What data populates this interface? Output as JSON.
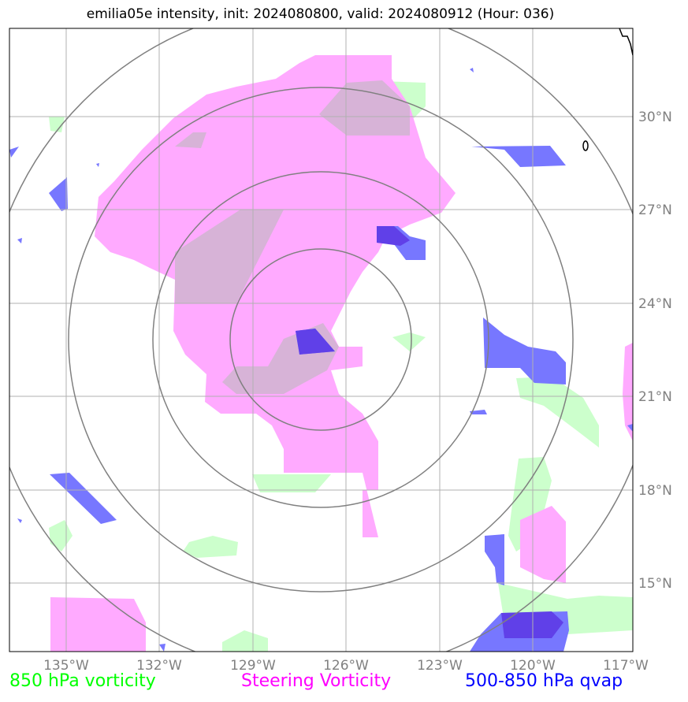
{
  "title": "emilia05e intensity, init: 2024080800, valid: 2024080912 (Hour: 036)",
  "lon_labels": [
    "135°W",
    "132°W",
    "129°W",
    "126°W",
    "123°W",
    "120°W",
    "117°W"
  ],
  "lat_labels": [
    "30°N",
    "27°N",
    "24°N",
    "21°N",
    "18°N",
    "15°N"
  ],
  "legend": [
    {
      "label": "850 hPa vorticity",
      "color": "#00ff00"
    },
    {
      "label": "Steering Vorticity",
      "color": "#ff00ff"
    },
    {
      "label": "500-850 hPa qvap",
      "color": "#0000ff"
    }
  ],
  "colors": {
    "vort850": "#ccffcc",
    "steering": "#ffaaff",
    "qvap": "#7777ff",
    "overlap": "#d8b8d8",
    "rings": "#808080",
    "grid": "#b0b0b0"
  }
}
